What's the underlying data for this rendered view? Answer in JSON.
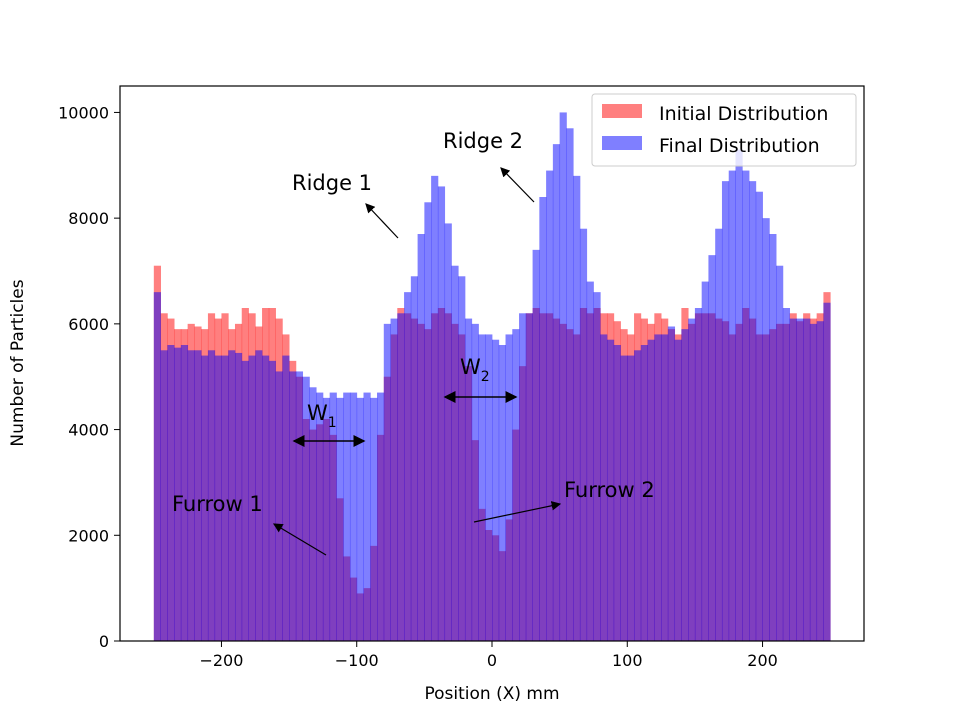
{
  "chart_data": {
    "type": "histogram",
    "title": "",
    "xlabel": "Position (X) mm",
    "ylabel": "Number of Particles",
    "xlim": [
      -275,
      275
    ],
    "ylim": [
      0,
      10500
    ],
    "xticks": [
      -200,
      -100,
      0,
      100,
      200
    ],
    "xtick_labels": [
      "−200",
      "−100",
      "0",
      "100",
      "200"
    ],
    "yticks": [
      0,
      2000,
      4000,
      6000,
      8000,
      10000
    ],
    "ytick_labels": [
      "0",
      "2000",
      "4000",
      "6000",
      "8000",
      "10000"
    ],
    "bins": {
      "start": -250,
      "width": 5,
      "count": 100
    },
    "legend_position": "top-right",
    "colors": {
      "initial": "#ff0000",
      "final": "#0000ff",
      "overlap": "#7f3fbf"
    },
    "series": [
      {
        "name": "Initial Distribution",
        "alpha": 0.5,
        "values": [
          7100,
          6200,
          6100,
          5900,
          5900,
          6000,
          5950,
          5900,
          6200,
          6100,
          6200,
          5900,
          6000,
          6300,
          6200,
          5950,
          6300,
          6300,
          6100,
          5800,
          5300,
          5000,
          4200,
          4000,
          4100,
          4200,
          3900,
          2700,
          1600,
          1200,
          900,
          1000,
          1800,
          3900,
          5000,
          5800,
          6300,
          6200,
          6100,
          6000,
          5900,
          6200,
          6300,
          6200,
          6000,
          5800,
          5200,
          3800,
          2500,
          2100,
          2000,
          1700,
          2300,
          4000,
          5200,
          6200,
          6300,
          6200,
          6200,
          6100,
          6000,
          5900,
          5800,
          6300,
          6200,
          6300,
          6200,
          6200,
          6050,
          5900,
          5800,
          6200,
          6100,
          6000,
          6200,
          6100,
          5900,
          5800,
          6300,
          6000,
          6200,
          6200,
          6200,
          6100,
          6050,
          5800,
          6000,
          6300,
          6100,
          5800,
          5800,
          5900,
          6000,
          6000,
          6200,
          6050,
          6200,
          6100,
          6200,
          6600
        ]
      },
      {
        "name": "Final Distribution",
        "alpha": 0.5,
        "values": [
          6600,
          5500,
          5600,
          5550,
          5600,
          5500,
          5500,
          5400,
          5500,
          5400,
          5400,
          5500,
          5450,
          5300,
          5400,
          5500,
          5400,
          5300,
          5100,
          5400,
          5100,
          5100,
          5000,
          4800,
          4700,
          4600,
          4700,
          4600,
          4700,
          4700,
          4600,
          4700,
          4600,
          4700,
          6000,
          6100,
          6200,
          6600,
          6900,
          7700,
          8300,
          8800,
          8600,
          7900,
          7100,
          6900,
          6100,
          6000,
          5800,
          5800,
          5700,
          5600,
          5800,
          5900,
          6200,
          6200,
          7400,
          8400,
          8900,
          9400,
          10000,
          9700,
          8800,
          7800,
          6800,
          6600,
          5800,
          5700,
          5600,
          5400,
          5400,
          5500,
          5600,
          5700,
          5800,
          5800,
          5950,
          5700,
          5900,
          6100,
          6300,
          6800,
          7300,
          7800,
          8700,
          8900,
          9300,
          8900,
          8700,
          8500,
          8000,
          7700,
          7100,
          6300,
          6100,
          6100,
          6100,
          6000,
          6050,
          6400
        ]
      }
    ],
    "legend": [
      "Initial Distribution",
      "Final Distribution"
    ],
    "annotations": [
      {
        "text": "Ridge 1",
        "kind": "label-arrow"
      },
      {
        "text": "Ridge 2",
        "kind": "label-arrow"
      },
      {
        "text": "Furrow 1",
        "kind": "label-arrow"
      },
      {
        "text": "Furrow 2",
        "kind": "label-arrow"
      },
      {
        "text": "W",
        "sub": "1",
        "kind": "width-marker"
      },
      {
        "text": "W",
        "sub": "2",
        "kind": "width-marker"
      }
    ]
  }
}
